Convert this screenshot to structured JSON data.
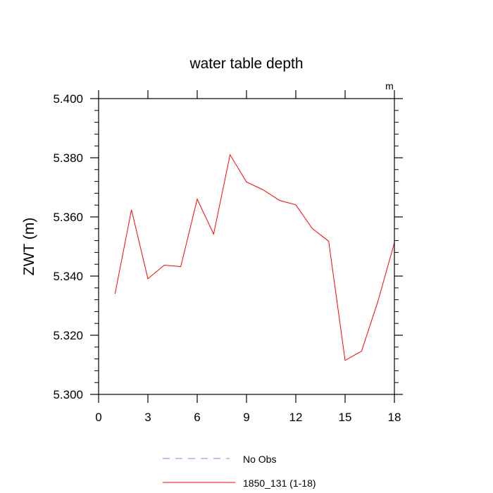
{
  "chart_data": {
    "type": "line",
    "title": "water table depth",
    "units_label": "m",
    "xlabel": "",
    "ylabel": "ZWT  (m)",
    "xlim": [
      0,
      18
    ],
    "ylim": [
      5.3,
      5.4
    ],
    "x_ticks": [
      "0",
      "3",
      "6",
      "9",
      "12",
      "15",
      "18"
    ],
    "y_ticks": [
      "5.300",
      "5.320",
      "5.340",
      "5.360",
      "5.380",
      "5.400"
    ],
    "legend_placement": "bottom-center",
    "series": [
      {
        "name": "No Obs",
        "color": "#8080ff",
        "dash": "dashed",
        "x": [],
        "values": []
      },
      {
        "name": "1850_131 (1-18)",
        "color": "#ff0000",
        "dash": "solid",
        "x": [
          1,
          2,
          3,
          4,
          5,
          6,
          7,
          8,
          9,
          10,
          11,
          12,
          13,
          14,
          15,
          16,
          17,
          18
        ],
        "values": [
          5.334,
          5.3624,
          5.3391,
          5.3437,
          5.3432,
          5.366,
          5.3542,
          5.381,
          5.3718,
          5.3692,
          5.3656,
          5.3641,
          5.3561,
          5.3518,
          5.3115,
          5.3146,
          5.3315,
          5.3513
        ]
      }
    ]
  }
}
